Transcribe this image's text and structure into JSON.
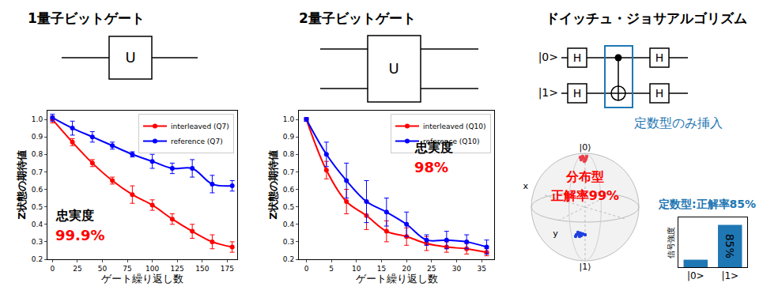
{
  "chart_data": [
    {
      "type": "line",
      "x_label": "ゲート繰り返し数",
      "y_label": "Z状態の期待値",
      "x": [
        0,
        20,
        40,
        60,
        80,
        100,
        120,
        140,
        160,
        180
      ],
      "series": [
        {
          "name": "interleaved (Q7)",
          "color": "#ff0000",
          "marker": "circle",
          "values": [
            1.0,
            0.87,
            0.75,
            0.65,
            0.57,
            0.51,
            0.43,
            0.36,
            0.3,
            0.27
          ],
          "error": [
            0.02,
            0.02,
            0.02,
            0.02,
            0.05,
            0.03,
            0.03,
            0.04,
            0.04,
            0.03
          ]
        },
        {
          "name": "reference (Q7)",
          "color": "#0000ff",
          "marker": "circle",
          "values": [
            1.01,
            0.95,
            0.9,
            0.85,
            0.8,
            0.76,
            0.72,
            0.72,
            0.63,
            0.62
          ],
          "error": [
            0.02,
            0.04,
            0.03,
            0.02,
            0.015,
            0.04,
            0.03,
            0.05,
            0.05,
            0.03
          ]
        }
      ],
      "xlim": [
        -5,
        185
      ],
      "xticks": [
        0,
        25,
        50,
        75,
        100,
        125,
        150,
        175
      ],
      "ylim": [
        0.2,
        1.05
      ],
      "yticks": [
        0.2,
        0.3,
        0.4,
        0.5,
        0.6,
        0.7,
        0.8,
        0.9,
        {
          "value": 1,
          "label": "1.0"
        }
      ],
      "legend": "upper right",
      "grid": false,
      "annotations": [
        {
          "text": "忠実度",
          "color": "#000000"
        },
        {
          "text": "99.9%",
          "color": "#ff0000"
        }
      ]
    },
    {
      "type": "line",
      "x_label": "ゲート繰り返し数",
      "y_label": "Z状態の期待値",
      "x": [
        0,
        4,
        8,
        12,
        16,
        20,
        24,
        28,
        32,
        36
      ],
      "series": [
        {
          "name": "interleaved (Q10)",
          "color": "#ff0000",
          "marker": "circle",
          "values": [
            1.0,
            0.71,
            0.53,
            0.45,
            0.36,
            0.33,
            0.29,
            0.27,
            0.26,
            0.24
          ],
          "error": [
            0.01,
            0.05,
            0.07,
            0.08,
            0.06,
            0.05,
            0.04,
            0.03,
            0.03,
            0.02
          ]
        },
        {
          "name": "reference (Q10)",
          "color": "#0000ff",
          "marker": "circle",
          "values": [
            1.0,
            0.8,
            0.65,
            0.53,
            0.47,
            0.4,
            0.31,
            0.31,
            0.3,
            0.27
          ],
          "error": [
            0.01,
            0.07,
            0.1,
            0.12,
            0.08,
            0.07,
            0.03,
            0.05,
            0.04,
            0.04
          ]
        }
      ],
      "xlim": [
        -1.5,
        37.5
      ],
      "xticks": [
        0,
        5,
        10,
        15,
        20,
        25,
        30,
        35
      ],
      "ylim": [
        0.2,
        1.05
      ],
      "yticks": [
        0.2,
        0.3,
        0.4,
        0.5,
        0.6,
        0.7,
        0.8,
        0.9,
        {
          "value": 1,
          "label": "1.0"
        }
      ],
      "legend": "upper right",
      "grid": false,
      "annotations": [
        {
          "text": "忠実度",
          "color": "#000000"
        },
        {
          "text": "98%",
          "color": "#ff0000"
        }
      ]
    },
    {
      "type": "bar",
      "title": "定数型:正解率85%",
      "title_color": "#1f77b4",
      "y_label": "信号強度",
      "categories": [
        "|0>",
        "|1>"
      ],
      "values": [
        15,
        85
      ],
      "value_labels": [
        null,
        "85%"
      ],
      "color": "#1f77b4",
      "ylim": [
        0,
        100
      ],
      "tick_labels": "x"
    }
  ],
  "diagrams": {
    "one_qubit": {
      "title": "1量子ビットゲート",
      "gate": "U"
    },
    "two_qubit": {
      "title": "2量子ビットゲート",
      "gate": "U"
    },
    "deutsch_jozsa": {
      "title": "ドイッチュ・ジョサアルゴリズム",
      "inputs": [
        "|0>",
        "|1>"
      ],
      "gate": "H",
      "note": "定数型のみ挿入",
      "note_color": "#1f77b4"
    },
    "bloch_sphere": {
      "poles": [
        "|0⟩",
        "|1⟩"
      ],
      "axes": [
        "x",
        "y"
      ],
      "label": [
        "分布型",
        "正解率99%"
      ],
      "label_color": "#ff0000"
    }
  }
}
